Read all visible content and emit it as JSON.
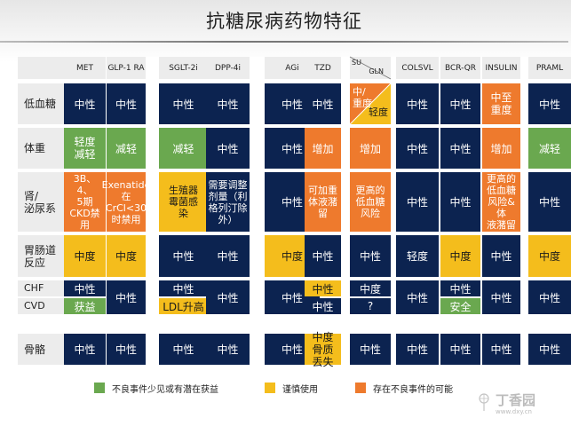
{
  "title": "抗糖尿病药物特征",
  "columns": [
    "MET",
    "GLP-1 RA",
    "SGLT-2i",
    "DPP-4i",
    "AGi",
    "TZD",
    "SU",
    "GLN",
    "COLSVL",
    "BCR-QR",
    "INSULIN",
    "PRAML"
  ],
  "rows": {
    "hypoglycemia": {
      "label": "低血糖",
      "cells": [
        "中性",
        "中性",
        "中性",
        "中性",
        "中性",
        "中性",
        "中/\n重度",
        "轻度",
        "中性",
        "中性",
        "中至\n重度",
        "中性"
      ]
    },
    "weight": {
      "label": "体重",
      "cells": [
        "轻度\n减轻",
        "减轻",
        "减轻",
        "中性",
        "中性",
        "增加",
        "增加",
        "中性",
        "中性",
        "增加",
        "减轻"
      ]
    },
    "renal": {
      "label": "肾/\n泌尿系",
      "cells": [
        "3B、4、\n5期\nCKD禁\n用",
        "Exenatide\n在CrCl<30\n时禁用",
        "生殖器\n霉菌感\n染",
        "需要调整\n剂量（利\n格列汀除\n外）",
        "中性",
        "可加重\n体液潴\n留",
        "更高的\n低血糖\n风险",
        "中性",
        "中性",
        "更高的\n低血糖\n风险&体\n液潴留",
        "中性"
      ]
    },
    "gi": {
      "label": "胃肠道\n反应",
      "cells": [
        "中度",
        "中度",
        "中性",
        "中性",
        "中度",
        "中性",
        "中性",
        "轻度",
        "中度",
        "中性",
        "中度"
      ]
    },
    "chf": {
      "label": "CHF",
      "cells": [
        "中性",
        "中性",
        "中性",
        "中度",
        "中性"
      ]
    },
    "cvd": {
      "label": "CVD",
      "cells": [
        "获益",
        "LDL升高",
        "中性",
        "?",
        "安全"
      ]
    },
    "chf_cvd_merged": [
      "中性",
      "中性",
      "中性",
      "中性",
      "中性"
    ],
    "bone": {
      "label": "骨骼",
      "cells": [
        "中性",
        "中性",
        "中性",
        "中性",
        "中性",
        "中度\n骨质\n丢失",
        "中性",
        "中性",
        "中性",
        "中性",
        "中性"
      ]
    }
  },
  "legend": [
    {
      "label": "不良事件少见或有潜在获益",
      "color": "#6aa84f"
    },
    {
      "label": "谨慎使用",
      "color": "#f4bd1c"
    },
    {
      "label": "存在不良事件的可能",
      "color": "#ee7a2d"
    }
  ],
  "watermark": {
    "main": "丁香园",
    "sub": "www.dxy.cn"
  },
  "colors": {
    "navy": "#0c2350",
    "green": "#6aa84f",
    "yellow": "#f4bd1c",
    "orange": "#ee7a2d",
    "header": "#ececec"
  }
}
